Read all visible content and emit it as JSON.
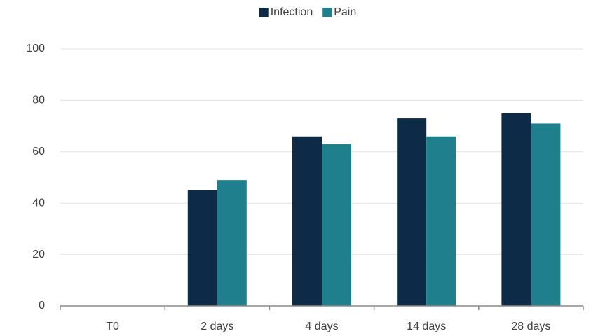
{
  "chart_data": {
    "type": "bar",
    "categories": [
      "T0",
      "2 days",
      "4 days",
      "14 days",
      "28 days"
    ],
    "series": [
      {
        "name": "Infection",
        "color": "#0d2a47",
        "values": [
          0,
          45,
          66,
          73,
          75
        ]
      },
      {
        "name": "Pain",
        "color": "#1f7f8c",
        "values": [
          0,
          49,
          63,
          66,
          71
        ]
      }
    ],
    "ylim": [
      0,
      100
    ],
    "yticks": [
      0,
      20,
      40,
      60,
      80,
      100
    ],
    "grid": true,
    "legend": "top"
  }
}
